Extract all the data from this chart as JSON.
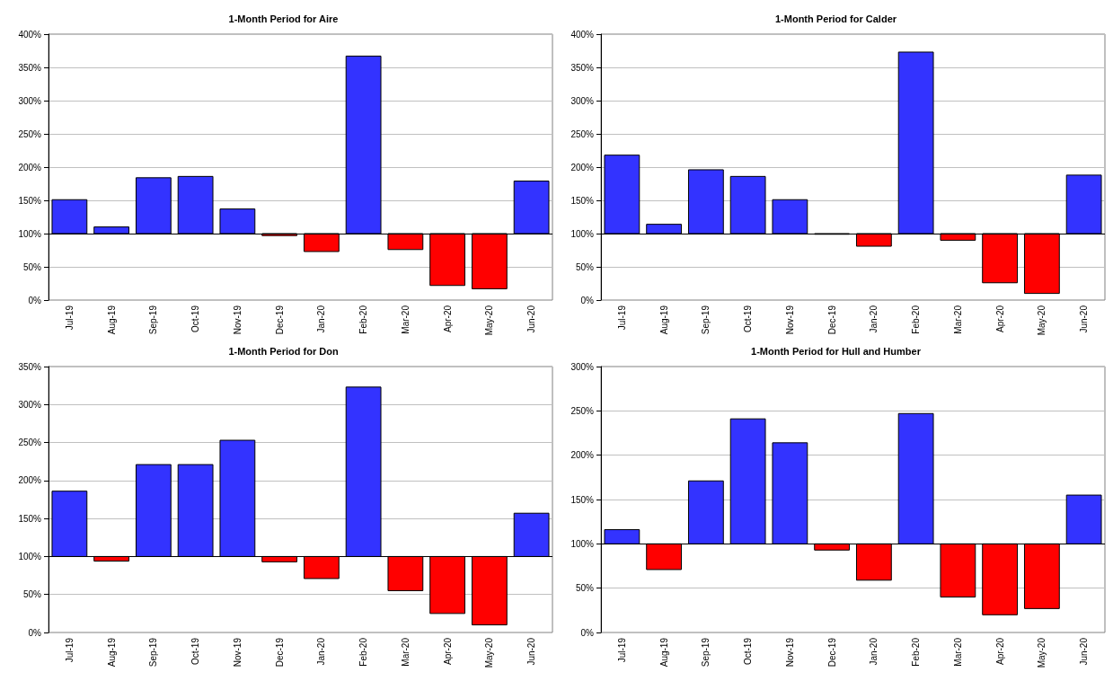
{
  "chart_data": [
    {
      "type": "bar",
      "title": "1-Month Period for Aire",
      "categories": [
        "Jul-19",
        "Aug-19",
        "Sep-19",
        "Oct-19",
        "Nov-19",
        "Dec-19",
        "Jan-20",
        "Feb-20",
        "Mar-20",
        "Apr-20",
        "May-20",
        "Jun-20"
      ],
      "base": [
        100,
        100,
        100,
        100,
        100,
        100,
        100,
        100,
        100,
        100,
        100,
        100
      ],
      "values": [
        51,
        10,
        84,
        86,
        37,
        -3,
        -27,
        267,
        -24,
        -78,
        -83,
        79
      ],
      "colors": [
        "#3333ff",
        "#3333ff",
        "#3333ff",
        "#3333ff",
        "#3333ff",
        "#ff0000",
        "#ff0000",
        "#3333ff",
        "#ff0000",
        "#ff0000",
        "#ff0000",
        "#3333ff"
      ],
      "ylim": [
        0,
        400
      ],
      "yticks": [
        {
          "value": 0,
          "label": "0%"
        },
        {
          "value": 50,
          "label": "50%"
        },
        {
          "value": 100,
          "label": "100%"
        },
        {
          "value": 150,
          "label": "150%"
        },
        {
          "value": 200,
          "label": "200%"
        },
        {
          "value": 250,
          "label": "250%"
        },
        {
          "value": 300,
          "label": "300%"
        },
        {
          "value": 350,
          "label": "350%"
        },
        {
          "value": 400,
          "label": "400%"
        }
      ],
      "grid": "y",
      "ref_lines": [
        {
          "axis": "y",
          "value": 100,
          "color": "#000000"
        }
      ]
    },
    {
      "type": "bar",
      "title": "1-Month Period for Calder",
      "categories": [
        "Jul-19",
        "Aug-19",
        "Sep-19",
        "Oct-19",
        "Nov-19",
        "Dec-19",
        "Jan-20",
        "Feb-20",
        "Mar-20",
        "Apr-20",
        "May-20",
        "Jun-20"
      ],
      "base": [
        100,
        100,
        100,
        100,
        100,
        100,
        100,
        100,
        100,
        100,
        100,
        100
      ],
      "values": [
        118,
        14,
        96,
        86,
        51,
        -1,
        -19,
        273,
        -10,
        -74,
        -90,
        88
      ],
      "colors": [
        "#3333ff",
        "#3333ff",
        "#3333ff",
        "#3333ff",
        "#3333ff",
        "#ff0000",
        "#ff0000",
        "#3333ff",
        "#ff0000",
        "#ff0000",
        "#ff0000",
        "#3333ff"
      ],
      "ylim": [
        0,
        400
      ],
      "yticks": [
        {
          "value": 0,
          "label": "0%"
        },
        {
          "value": 50,
          "label": "50%"
        },
        {
          "value": 100,
          "label": "100%"
        },
        {
          "value": 150,
          "label": "150%"
        },
        {
          "value": 200,
          "label": "200%"
        },
        {
          "value": 250,
          "label": "250%"
        },
        {
          "value": 300,
          "label": "300%"
        },
        {
          "value": 350,
          "label": "350%"
        },
        {
          "value": 400,
          "label": "400%"
        }
      ],
      "grid": "y",
      "ref_lines": [
        {
          "axis": "y",
          "value": 100,
          "color": "#000000"
        }
      ]
    },
    {
      "type": "bar",
      "title": "1-Month Period for Don",
      "categories": [
        "Jul-19",
        "Aug-19",
        "Sep-19",
        "Oct-19",
        "Nov-19",
        "Dec-19",
        "Jan-20",
        "Feb-20",
        "Mar-20",
        "Apr-20",
        "May-20",
        "Jun-20"
      ],
      "base": [
        100,
        100,
        100,
        100,
        100,
        100,
        100,
        100,
        100,
        100,
        100,
        100
      ],
      "values": [
        86,
        -6,
        121,
        121,
        153,
        -7,
        -29,
        223,
        -45,
        -75,
        -90,
        57
      ],
      "colors": [
        "#3333ff",
        "#ff0000",
        "#3333ff",
        "#3333ff",
        "#3333ff",
        "#ff0000",
        "#ff0000",
        "#3333ff",
        "#ff0000",
        "#ff0000",
        "#ff0000",
        "#3333ff"
      ],
      "ylim": [
        0,
        350
      ],
      "yticks": [
        {
          "value": 0,
          "label": "0%"
        },
        {
          "value": 50,
          "label": "50%"
        },
        {
          "value": 100,
          "label": "100%"
        },
        {
          "value": 150,
          "label": "150%"
        },
        {
          "value": 200,
          "label": "200%"
        },
        {
          "value": 250,
          "label": "250%"
        },
        {
          "value": 300,
          "label": "300%"
        },
        {
          "value": 350,
          "label": "350%"
        }
      ],
      "grid": "y",
      "ref_lines": [
        {
          "axis": "y",
          "value": 100,
          "color": "#000000"
        }
      ]
    },
    {
      "type": "bar",
      "title": "1-Month Period for Hull and Humber",
      "categories": [
        "Jul-19",
        "Aug-19",
        "Sep-19",
        "Oct-19",
        "Nov-19",
        "Dec-19",
        "Jan-20",
        "Feb-20",
        "Mar-20",
        "Apr-20",
        "May-20",
        "Jun-20"
      ],
      "base": [
        100,
        100,
        100,
        100,
        100,
        100,
        100,
        100,
        100,
        100,
        100,
        100
      ],
      "values": [
        16,
        -29,
        71,
        141,
        114,
        -7,
        -41,
        147,
        -60,
        -80,
        -73,
        55
      ],
      "colors": [
        "#3333ff",
        "#ff0000",
        "#3333ff",
        "#3333ff",
        "#3333ff",
        "#ff0000",
        "#ff0000",
        "#3333ff",
        "#ff0000",
        "#ff0000",
        "#ff0000",
        "#3333ff"
      ],
      "ylim": [
        0,
        300
      ],
      "yticks": [
        {
          "value": 0,
          "label": "0%"
        },
        {
          "value": 50,
          "label": "50%"
        },
        {
          "value": 100,
          "label": "100%"
        },
        {
          "value": 150,
          "label": "150%"
        },
        {
          "value": 200,
          "label": "200%"
        },
        {
          "value": 250,
          "label": "250%"
        },
        {
          "value": 300,
          "label": "300%"
        }
      ],
      "grid": "y",
      "ref_lines": [
        {
          "axis": "y",
          "value": 100,
          "color": "#000000"
        }
      ]
    }
  ]
}
